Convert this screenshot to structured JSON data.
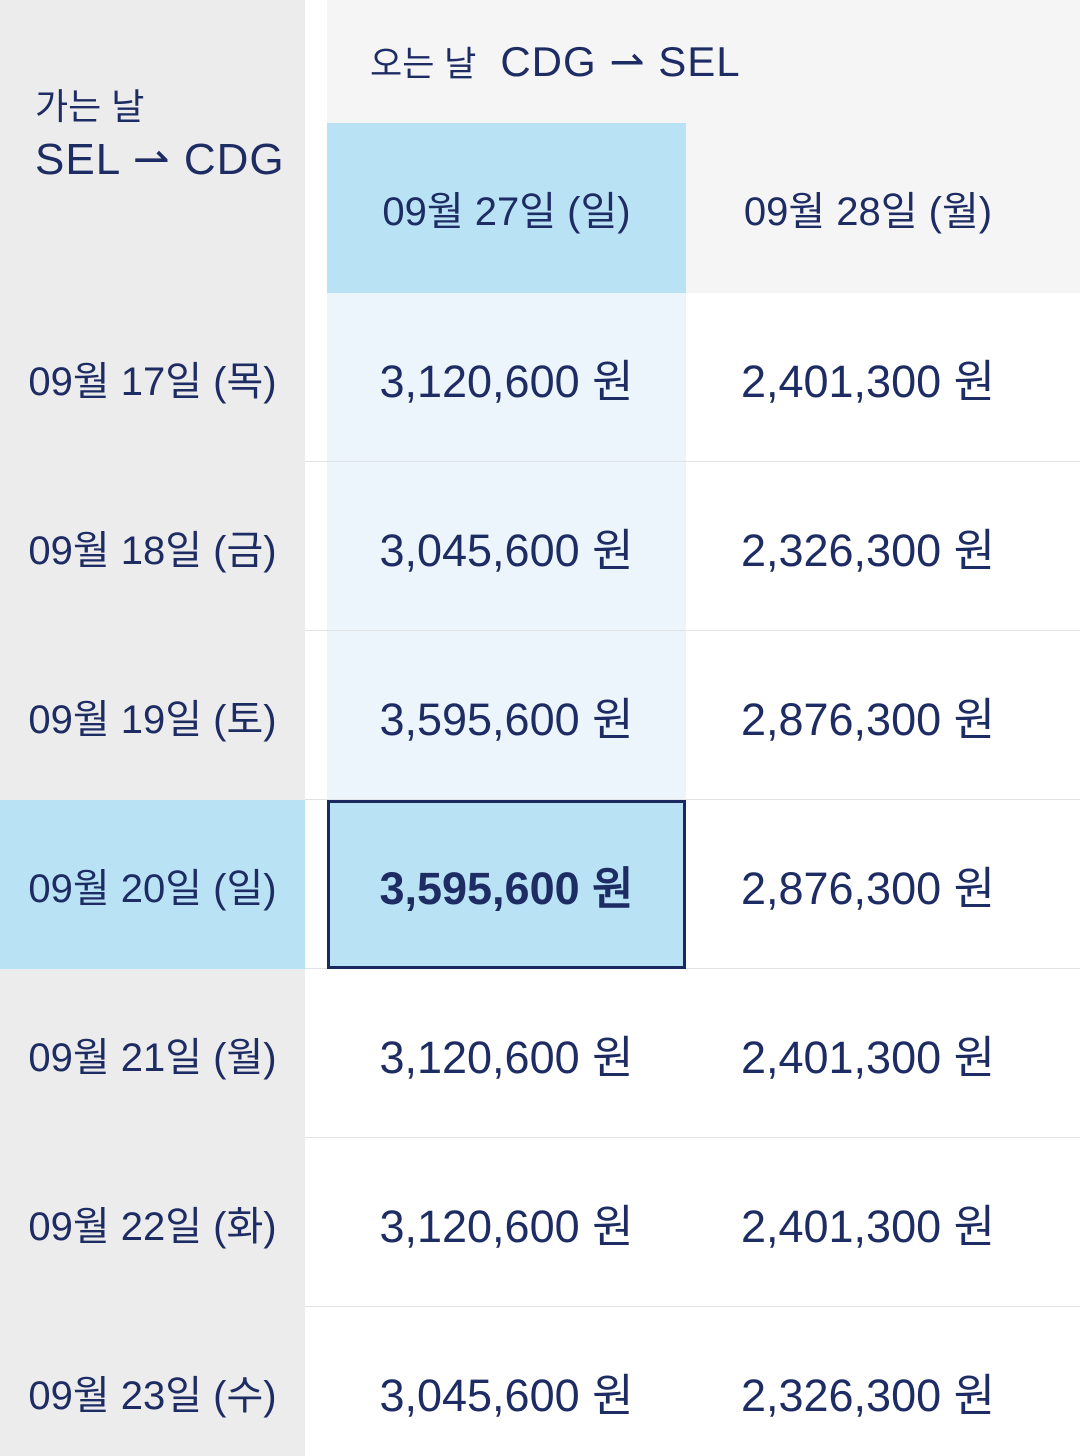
{
  "colors": {
    "navy": "#1e2c64",
    "panel-gray": "#ececec",
    "band-gray": "#f5f5f6",
    "highlight": "#b9e2f4",
    "tint": "#ecf5fb",
    "separator": "#e0e3e5",
    "selected-border": "#1b2a5e"
  },
  "left_panel": {
    "direction_label": "가는 날",
    "route": "SEL ⇀ CDG"
  },
  "return_header": {
    "direction_label": "오는 날",
    "route": "CDG ⇀ SEL"
  },
  "columns": [
    {
      "label": "09월 27일 (일)",
      "highlighted": true
    },
    {
      "label": "09월 28일 (월)",
      "highlighted": false
    }
  ],
  "rows": [
    {
      "label": "09월 17일 (목)",
      "prices": [
        "3,120,600 원",
        "2,401,300 원"
      ],
      "col1_state": "tint",
      "highlighted": false
    },
    {
      "label": "09월 18일 (금)",
      "prices": [
        "3,045,600 원",
        "2,326,300 원"
      ],
      "col1_state": "tint",
      "highlighted": false
    },
    {
      "label": "09월 19일 (토)",
      "prices": [
        "3,595,600 원",
        "2,876,300 원"
      ],
      "col1_state": "tint",
      "highlighted": false
    },
    {
      "label": "09월 20일 (일)",
      "prices": [
        "3,595,600 원",
        "2,876,300 원"
      ],
      "col1_state": "selected",
      "highlighted": true
    },
    {
      "label": "09월 21일 (월)",
      "prices": [
        "3,120,600 원",
        "2,401,300 원"
      ],
      "col1_state": "plain",
      "highlighted": false
    },
    {
      "label": "09월 22일 (화)",
      "prices": [
        "3,120,600 원",
        "2,401,300 원"
      ],
      "col1_state": "plain",
      "highlighted": false
    },
    {
      "label": "09월 23일 (수)",
      "prices": [
        "3,045,600 원",
        "2,326,300 원"
      ],
      "col1_state": "plain",
      "highlighted": false
    }
  ],
  "selection": {
    "outbound_date": "09월 20일 (일)",
    "return_date": "09월 27일 (일)",
    "price": "3,595,600 원"
  }
}
